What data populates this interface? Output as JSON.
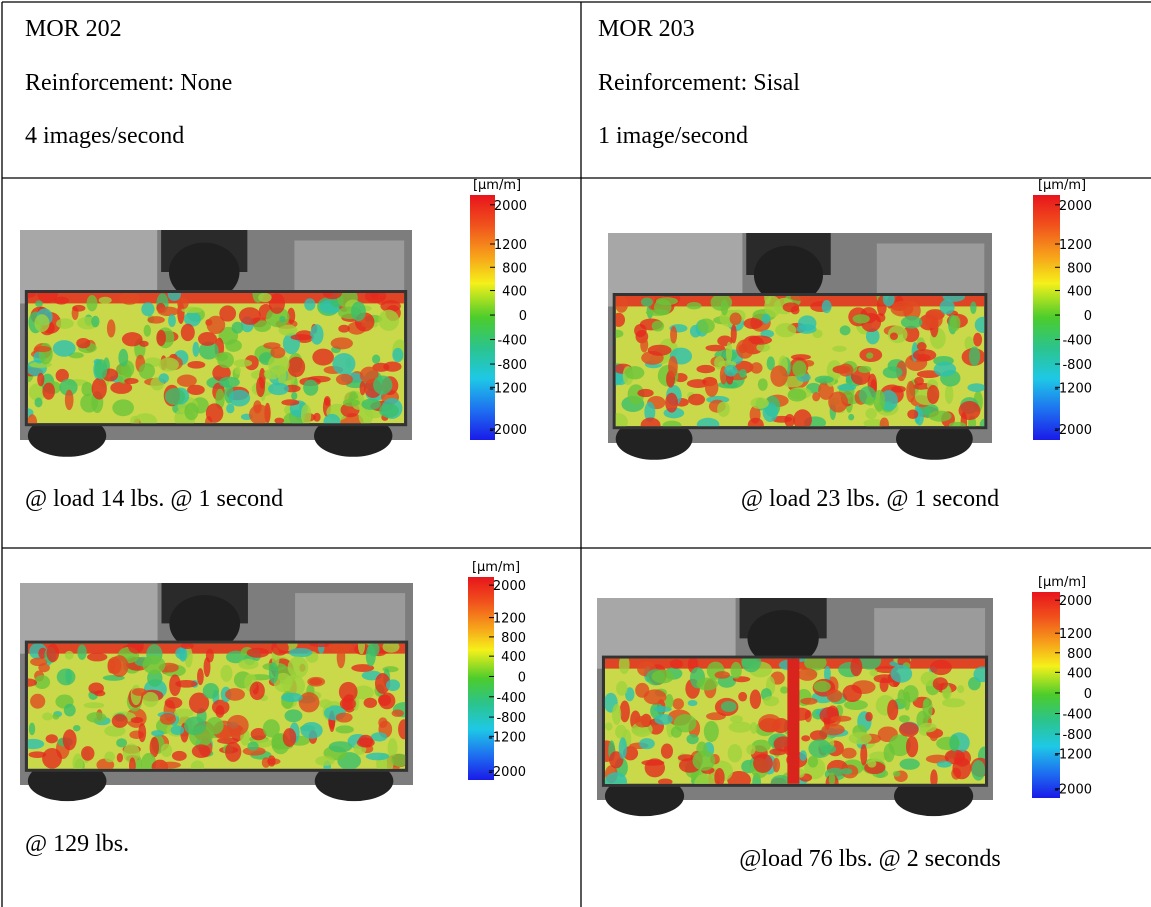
{
  "header": {
    "left": {
      "title": "MOR 202",
      "reinforcement": "Reinforcement: None",
      "rate": "4 images/second"
    },
    "right": {
      "title": "MOR 203",
      "reinforcement": "Reinforcement: Sisal",
      "rate": "1 image/second"
    }
  },
  "colorbar": {
    "unit": "[µm/m]",
    "ticks": [
      "2000",
      "1200",
      "800",
      "400",
      "0",
      "-400",
      "-800",
      "-1200",
      "-2000"
    ]
  },
  "rows": [
    {
      "left": {
        "caption": "@ load 14 lbs. @ 1 second"
      },
      "right": {
        "caption": "@ load 23 lbs. @ 1 second"
      }
    },
    {
      "left": {
        "caption": "@ 129 lbs."
      },
      "right": {
        "caption": "@load 76 lbs. @ 2 seconds"
      }
    }
  ]
}
